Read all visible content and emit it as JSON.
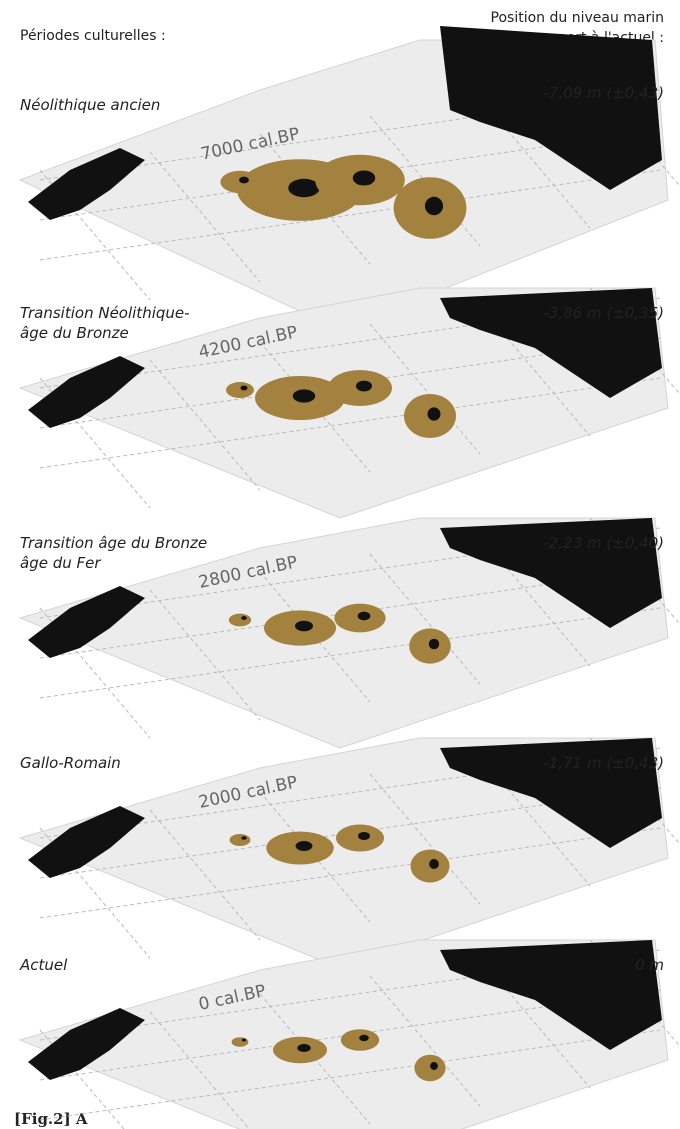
{
  "header": {
    "left": "Périodes culturelles :",
    "right": [
      "Position du niveau marin",
      "par rapport à l'actuel :"
    ]
  },
  "panels": [
    {
      "period": [
        "Néolithique ancien"
      ],
      "date": "7000 cal.BP",
      "sea_level": "-7,09 m (±0,43)"
    },
    {
      "period": [
        "Transition Néolithique-",
        "âge du Bronze"
      ],
      "date": "4200 cal.BP",
      "sea_level": "-3,86 m (±0,35)"
    },
    {
      "period": [
        "Transition âge du Bronze",
        "âge du Fer"
      ],
      "date": "2800 cal.BP",
      "sea_level": "-2,23 m (±0,40)"
    },
    {
      "period": [
        "Gallo-Romain"
      ],
      "date": "2000 cal.BP",
      "sea_level": "-1,71 m (±0,43)"
    },
    {
      "period": [
        "Actuel"
      ],
      "date": "0 cal.BP",
      "sea_level": "0 m"
    }
  ],
  "caption": "[Fig.2] A"
}
